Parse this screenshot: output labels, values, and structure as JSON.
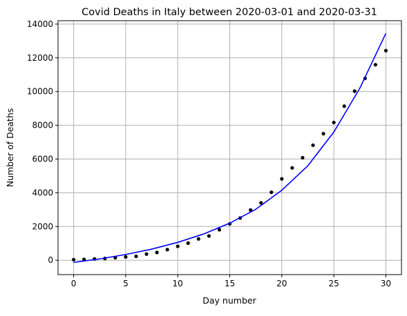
{
  "colors": {
    "points": "#000000",
    "fit_line": "#0000ff",
    "grid": "#b0b0b0",
    "background": "#ffffff"
  },
  "chart_data": {
    "type": "scatter",
    "title": "Covid Deaths in Italy between 2020-03-01 and 2020-03-31",
    "xlabel": "Day number",
    "ylabel": "Number of Deaths",
    "xlim": [
      -1.5,
      31.5
    ],
    "ylim": [
      -850,
      14200
    ],
    "xticks": [
      0,
      5,
      10,
      15,
      20,
      25,
      30
    ],
    "yticks": [
      0,
      2000,
      4000,
      6000,
      8000,
      10000,
      12000,
      14000
    ],
    "grid": true,
    "series": [
      {
        "kind": "points",
        "x": [
          0,
          1,
          2,
          3,
          4,
          5,
          6,
          7,
          8,
          9,
          10,
          11,
          12,
          13,
          14,
          15,
          16,
          17,
          18,
          19,
          20,
          21,
          22,
          23,
          24,
          25,
          26,
          27,
          28,
          29,
          30
        ],
        "y": [
          34,
          52,
          79,
          107,
          148,
          197,
          233,
          366,
          463,
          631,
          827,
          1016,
          1266,
          1441,
          1809,
          2158,
          2503,
          2978,
          3405,
          4032,
          4825,
          5476,
          6077,
          6820,
          7503,
          8165,
          9134,
          10023,
          10779,
          11591,
          12428
        ]
      },
      {
        "kind": "fit-line",
        "x": [
          0,
          2.5,
          5,
          7.5,
          10,
          12.5,
          15,
          17.5,
          20,
          22.5,
          25,
          27.5,
          30
        ],
        "y": [
          -130,
          80,
          340,
          660,
          1060,
          1560,
          2200,
          3020,
          4150,
          5600,
          7600,
          10200,
          13450
        ]
      }
    ]
  }
}
